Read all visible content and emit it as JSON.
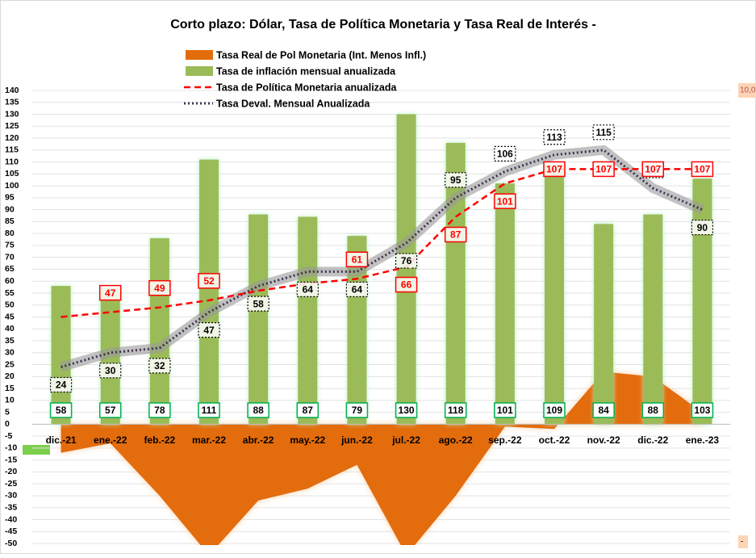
{
  "chart_data": {
    "type": "combo",
    "title": "Corto plazo: Dólar, Tasa de Política Monetaria y Tasa Real de Interés -",
    "categories": [
      "dic.-21",
      "ene.-22",
      "feb.-22",
      "mar.-22",
      "abr.-22",
      "may.-22",
      "jun.-22",
      "jul.-22",
      "ago.-22",
      "sep.-22",
      "oct.-22",
      "nov.-22",
      "dic.-22",
      "ene.-23"
    ],
    "ylim": [
      -50,
      140
    ],
    "yticks": [
      -50,
      -45,
      -40,
      -35,
      -30,
      -25,
      -20,
      -15,
      -10,
      -5,
      0,
      5,
      10,
      15,
      20,
      25,
      30,
      35,
      40,
      45,
      50,
      55,
      60,
      65,
      70,
      75,
      80,
      85,
      90,
      95,
      100,
      105,
      110,
      115,
      120,
      125,
      130,
      135,
      140
    ],
    "grid": true,
    "series": [
      {
        "name": "Tasa Real de Pol Monetaria (Int. Menos Infl.)",
        "kind": "area",
        "color": "#e36c0a",
        "values": [
          -12,
          -8,
          -30,
          -55,
          -32,
          -27,
          -17,
          -55,
          -30,
          -1,
          -2,
          22,
          20,
          5
        ]
      },
      {
        "name": "Tasa de inflación mensual anualizada",
        "kind": "bar",
        "color": "#9bbb59",
        "values": [
          58,
          57,
          78,
          111,
          88,
          87,
          79,
          130,
          118,
          101,
          109,
          84,
          88,
          103
        ]
      },
      {
        "name": "Tasa de Política Monetaria anualizada",
        "kind": "line",
        "color": "#ff0000",
        "values": [
          45,
          47,
          49,
          52,
          56,
          59,
          61,
          66,
          87,
          101,
          107,
          107,
          107,
          107
        ],
        "value_labels": [
          null,
          "47",
          "49",
          "52",
          null,
          null,
          "61",
          "66",
          "87",
          "101",
          "107",
          "107",
          "107",
          "107"
        ]
      },
      {
        "name": "Tasa Deval. Mensual Anualizada",
        "kind": "dotted",
        "color": "#403152",
        "values": [
          24,
          30,
          32,
          47,
          58,
          64,
          64,
          76,
          95,
          106,
          113,
          115,
          99,
          90
        ]
      }
    ],
    "y2_labels": [
      "10,0",
      "-"
    ]
  }
}
